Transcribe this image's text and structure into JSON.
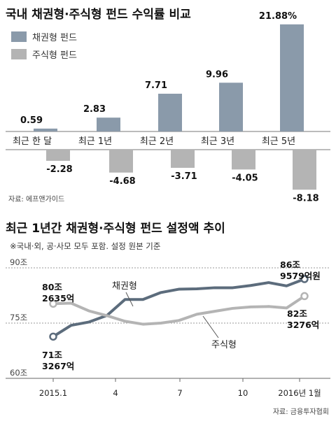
{
  "chart_data": [
    {
      "type": "bar",
      "title": "국내 채권형·주식형 펀드 수익률 비교",
      "categories": [
        "최근 한 달",
        "최근 1년",
        "최근 2년",
        "최근 3년",
        "최근 5년"
      ],
      "series": [
        {
          "name": "채권형 펀드",
          "values": [
            0.59,
            2.83,
            7.71,
            9.96,
            21.88
          ],
          "labels": [
            "0.59",
            "2.83",
            "7.71",
            "9.96",
            "21.88%"
          ]
        },
        {
          "name": "주식형 펀드",
          "values": [
            -2.28,
            -4.68,
            -3.71,
            -4.05,
            -8.18
          ],
          "labels": [
            "-2.28",
            "-4.68",
            "-3.71",
            "-4.05",
            "-8.18"
          ]
        }
      ],
      "colors": {
        "bond": "#8a9aaa",
        "stock": "#b4b4b4"
      },
      "source": "자료: 에프앤가이드"
    },
    {
      "type": "line",
      "title": "최근 1년간 채권형·주식형 펀드 설정액 추이",
      "subtitle": "※국내·외, 공·사모 모두 포함. 설정 원본 기준",
      "x_ticks": [
        "2015.1",
        "4",
        "7",
        "10",
        "2016년 1월"
      ],
      "y_ticks": [
        "90조",
        "75조",
        "60조"
      ],
      "ylim": [
        60,
        90
      ],
      "grid": true,
      "series": [
        {
          "name": "채권형",
          "color": "#5c6c7c",
          "values": [
            71.33,
            74.4,
            75.3,
            77.1,
            81.4,
            81.4,
            83.3,
            84.2,
            84.3,
            84.6,
            84.6,
            85.2,
            86.0,
            85.1,
            86.96
          ]
        },
        {
          "name": "주식형",
          "color": "#b4b4b4",
          "values": [
            80.26,
            80.4,
            78.3,
            77.0,
            75.5,
            74.7,
            75.0,
            75.7,
            77.4,
            78.2,
            79.0,
            79.4,
            79.5,
            79.1,
            82.33
          ]
        }
      ],
      "annotations": {
        "bond_start": [
          "71조",
          "3267억"
        ],
        "bond_end": [
          "86조",
          "9579억원"
        ],
        "stock_start": [
          "80조",
          "2635억"
        ],
        "stock_end": [
          "82조",
          "3276억"
        ]
      },
      "source": "자료: 금융투자협회"
    }
  ]
}
